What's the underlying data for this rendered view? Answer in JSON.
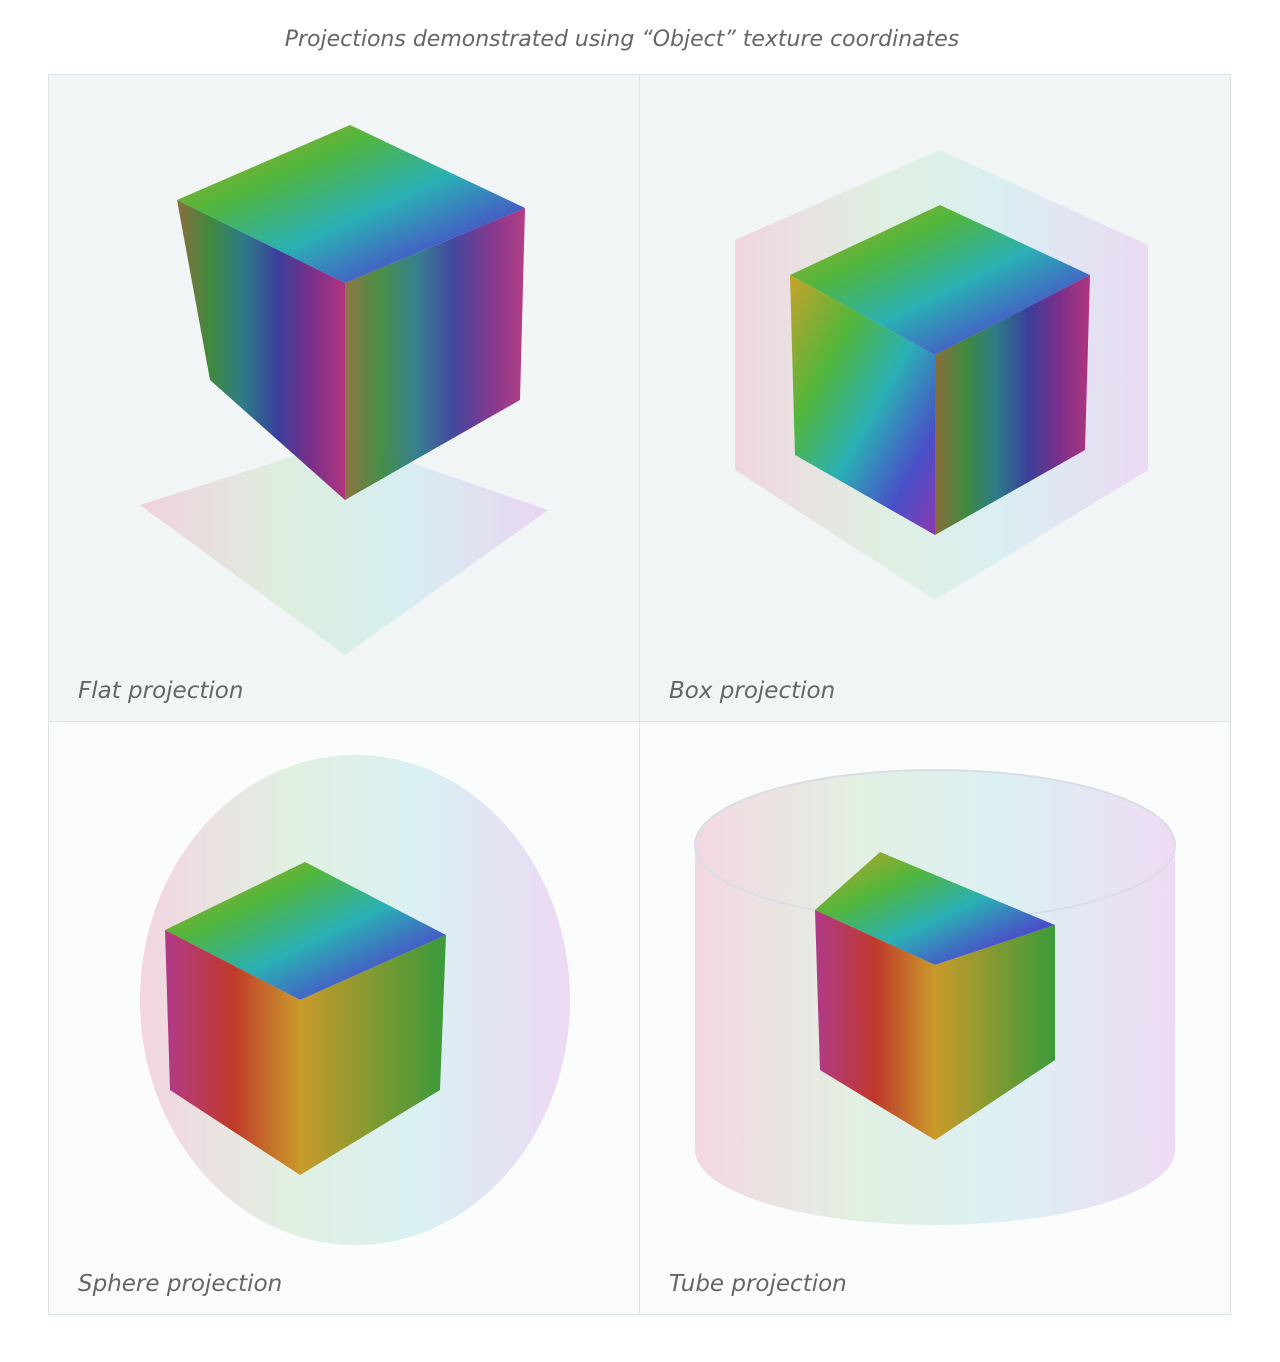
{
  "caption": "Projections demonstrated using “Object” texture coordinates",
  "panels": [
    {
      "label": "Flat projection"
    },
    {
      "label": "Box projection"
    },
    {
      "label": "Sphere projection"
    },
    {
      "label": "Tube projection"
    }
  ]
}
